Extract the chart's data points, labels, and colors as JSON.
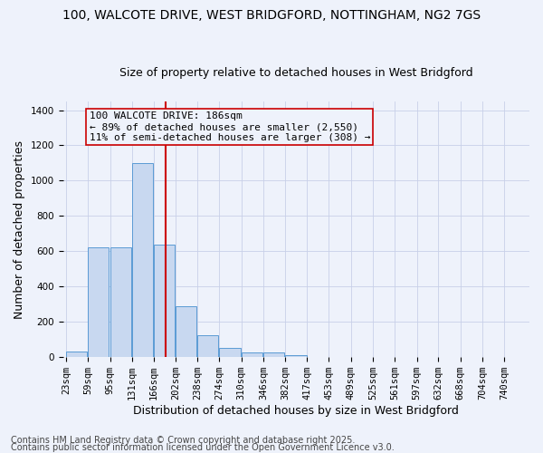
{
  "title1": "100, WALCOTE DRIVE, WEST BRIDGFORD, NOTTINGHAM, NG2 7GS",
  "title2": "Size of property relative to detached houses in West Bridgford",
  "xlabel": "Distribution of detached houses by size in West Bridgford",
  "ylabel": "Number of detached properties",
  "categories": [
    "23sqm",
    "59sqm",
    "95sqm",
    "131sqm",
    "166sqm",
    "202sqm",
    "238sqm",
    "274sqm",
    "310sqm",
    "346sqm",
    "382sqm",
    "417sqm",
    "453sqm",
    "489sqm",
    "525sqm",
    "561sqm",
    "597sqm",
    "632sqm",
    "668sqm",
    "704sqm",
    "740sqm"
  ],
  "bar_edges": [
    23,
    59,
    95,
    131,
    166,
    202,
    238,
    274,
    310,
    346,
    382,
    417,
    453,
    489,
    525,
    561,
    597,
    632,
    668,
    704,
    740
  ],
  "bar_heights": [
    30,
    620,
    620,
    1100,
    640,
    290,
    125,
    50,
    25,
    25,
    10,
    0,
    0,
    0,
    0,
    0,
    0,
    0,
    0,
    0,
    0
  ],
  "bar_color": "#c8d8f0",
  "bar_edgecolor": "#5b9bd5",
  "property_size": 186,
  "vline_color": "#cc0000",
  "annotation_line1": "100 WALCOTE DRIVE: 186sqm",
  "annotation_line2": "← 89% of detached houses are smaller (2,550)",
  "annotation_line3": "11% of semi-detached houses are larger (308) →",
  "annotation_box_edgecolor": "#cc0000",
  "ylim": [
    0,
    1450
  ],
  "yticks": [
    0,
    200,
    400,
    600,
    800,
    1000,
    1200,
    1400
  ],
  "background_color": "#eef2fb",
  "grid_color": "#c8d0e8",
  "footer1": "Contains HM Land Registry data © Crown copyright and database right 2025.",
  "footer2": "Contains public sector information licensed under the Open Government Licence v3.0.",
  "title1_fontsize": 10,
  "title2_fontsize": 9,
  "ylabel_fontsize": 9,
  "xlabel_fontsize": 9,
  "tick_fontsize": 7.5,
  "annotation_fontsize": 8,
  "footer_fontsize": 7
}
